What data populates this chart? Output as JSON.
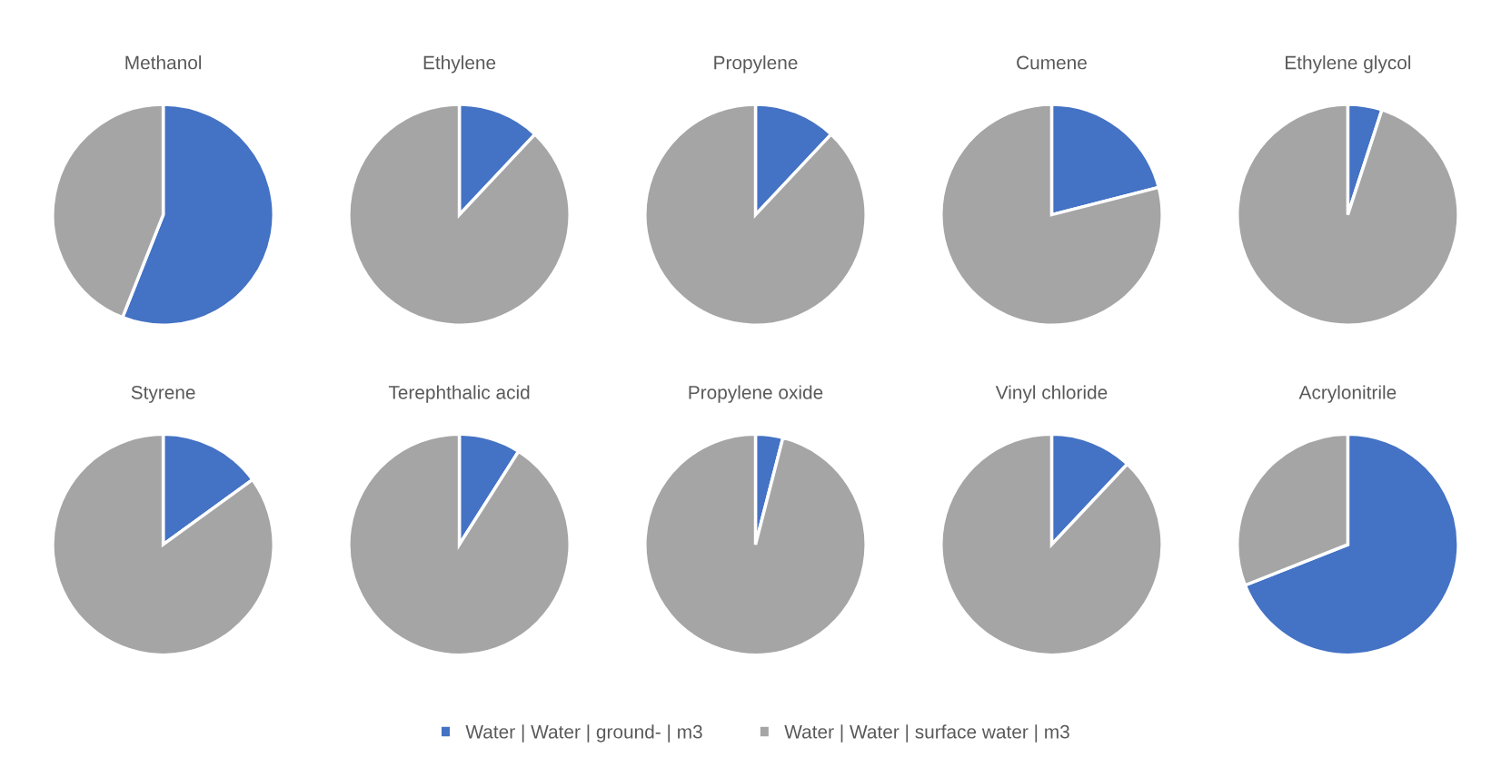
{
  "chart_data": [
    {
      "type": "pie",
      "title": "Methanol",
      "categories": [
        "Water | Water | ground- | m3",
        "Water | Water | surface water | m3"
      ],
      "values": [
        56,
        44
      ],
      "colors": [
        "#4472c4",
        "#a5a5a5"
      ],
      "legend": "bottom"
    },
    {
      "type": "pie",
      "title": "Ethylene",
      "categories": [
        null,
        null
      ],
      "values": [
        12,
        88
      ],
      "colors": [
        "#4472c4",
        "#a5a5a5"
      ]
    },
    {
      "type": "pie",
      "title": "Propylene",
      "categories": [
        null,
        null
      ],
      "values": [
        12,
        88
      ],
      "colors": [
        "#4472c4",
        "#a5a5a5"
      ]
    },
    {
      "type": "pie",
      "title": "Cumene",
      "categories": [
        null,
        null
      ],
      "values": [
        21,
        79
      ],
      "colors": [
        "#4472c4",
        "#a5a5a5"
      ]
    },
    {
      "type": "pie",
      "title": "Ethylene glycol",
      "categories": [
        null,
        null
      ],
      "values": [
        5,
        95
      ],
      "colors": [
        "#4472c4",
        "#a5a5a5"
      ]
    },
    {
      "type": "pie",
      "title": "Styrene",
      "categories": [
        null,
        null
      ],
      "values": [
        15,
        85
      ],
      "colors": [
        "#4472c4",
        "#a5a5a5"
      ]
    },
    {
      "type": "pie",
      "title": "Terephthalic acid",
      "categories": [
        null,
        null
      ],
      "values": [
        9,
        91
      ],
      "colors": [
        "#4472c4",
        "#a5a5a5"
      ]
    },
    {
      "type": "pie",
      "title": "Propylene oxide",
      "categories": [
        null,
        null
      ],
      "values": [
        4,
        96
      ],
      "colors": [
        "#4472c4",
        "#a5a5a5"
      ]
    },
    {
      "type": "pie",
      "title": "Vinyl chloride",
      "categories": [
        null,
        null
      ],
      "values": [
        12,
        88
      ],
      "colors": [
        "#4472c4",
        "#a5a5a5"
      ]
    },
    {
      "type": "pie",
      "title": "Acrylonitrile",
      "categories": [
        null,
        null
      ],
      "values": [
        69,
        31
      ],
      "colors": [
        "#4472c4",
        "#a5a5a5"
      ]
    }
  ]
}
